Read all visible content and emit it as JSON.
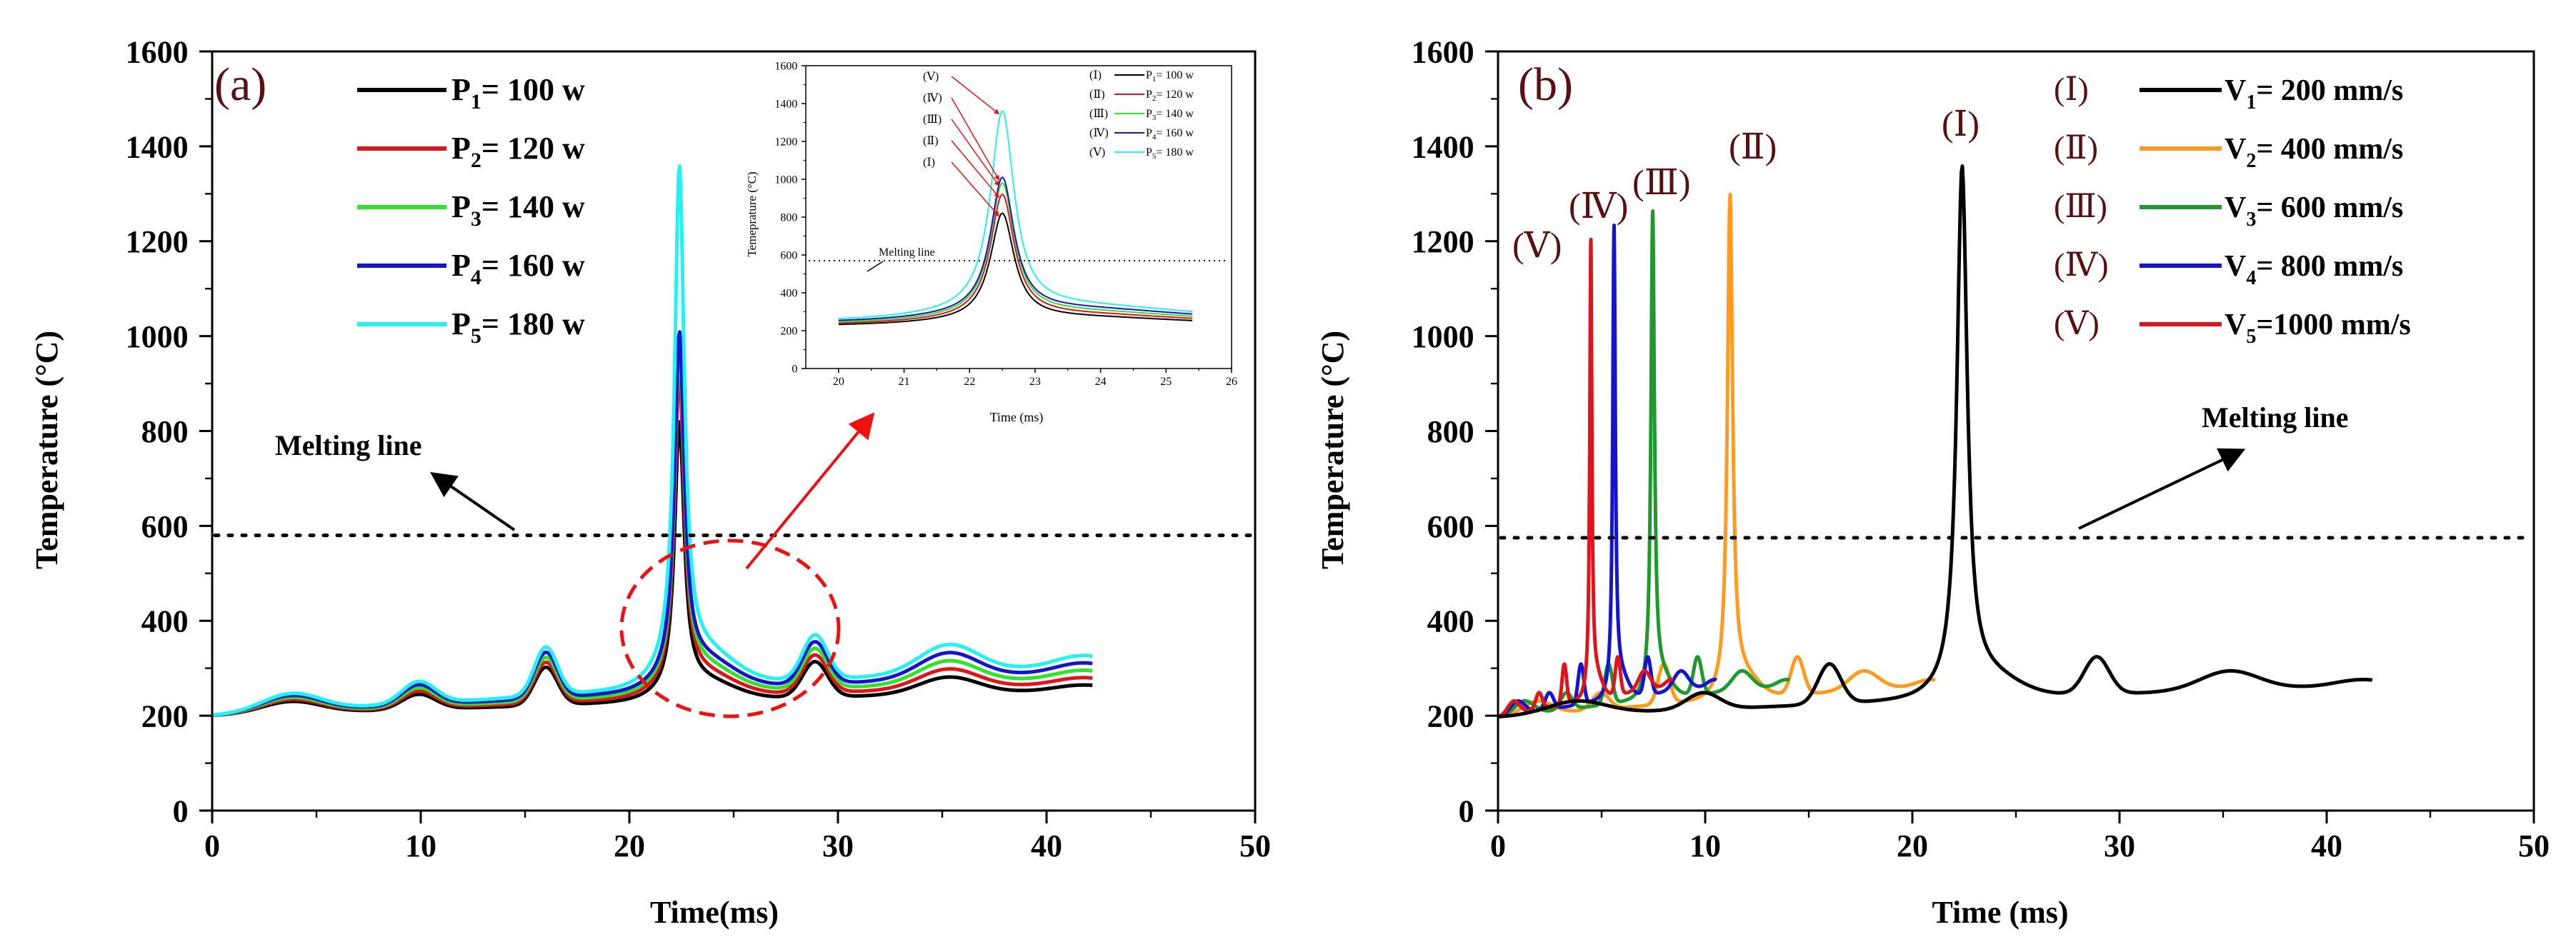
{
  "colors": {
    "black": "#000000",
    "red": "#e0141b",
    "green": "#2fe32b",
    "blue": "#1515d0",
    "cyan": "#22f2f2",
    "orange": "#ff9a1f",
    "dkgreen": "#1e9a2d",
    "annot_red": "#ee1111"
  },
  "chart_data": [
    {
      "id": "a",
      "type": "line",
      "panel_label": "(a)",
      "xlabel": "Time(ms)",
      "ylabel": "Temperature (°C)",
      "xlim": [
        0,
        50
      ],
      "ylim": [
        0,
        1600
      ],
      "xticks": [
        0,
        10,
        20,
        30,
        40,
        50
      ],
      "yticks": [
        0,
        200,
        400,
        600,
        800,
        1000,
        1200,
        1400,
        1600
      ],
      "melting_line": {
        "y": 580,
        "label": "Melting line"
      },
      "legend": [
        {
          "sub": "1",
          "value": "= 100 w"
        },
        {
          "sub": "2",
          "value": "= 120 w"
        },
        {
          "sub": "3",
          "value": "= 140 w"
        },
        {
          "sub": "4",
          "value": "= 160 w"
        },
        {
          "sub": "5",
          "value": "= 180 w"
        }
      ],
      "series": [
        {
          "name": "P1= 100 w",
          "color": "black",
          "offset": 0,
          "peak": 820
        },
        {
          "name": "P2= 120 w",
          "color": "red",
          "offset": 12,
          "peak": 920
        },
        {
          "name": "P3= 140 w",
          "color": "green",
          "offset": 24,
          "peak": 980
        },
        {
          "name": "P4= 160 w",
          "color": "blue",
          "offset": 36,
          "peak": 1010
        },
        {
          "name": "P5= 180 w",
          "color": "cyan",
          "offset": 48,
          "peak": 1360
        }
      ]
    },
    {
      "id": "a-inset",
      "type": "line",
      "xlabel": "Time (ms)",
      "ylabel": "Temeprature (°C)",
      "xlim": [
        19.5,
        26
      ],
      "ylim": [
        0,
        1600
      ],
      "xticks": [
        20,
        21,
        22,
        23,
        24,
        25,
        26
      ],
      "yticks": [
        0,
        200,
        400,
        600,
        800,
        1000,
        1200,
        1400,
        1600
      ],
      "melting_line": {
        "y": 570,
        "label": "Melting line"
      },
      "legend": [
        {
          "roman": "(Ⅰ)",
          "sub": "1",
          "value": "= 100 w"
        },
        {
          "roman": "(Ⅱ)",
          "sub": "2",
          "value": "= 120 w"
        },
        {
          "roman": "(Ⅲ)",
          "sub": "3",
          "value": "= 140 w"
        },
        {
          "roman": "(Ⅳ)",
          "sub": "4",
          "value": "= 160 w"
        },
        {
          "roman": "(Ⅴ)",
          "sub": "5",
          "value": "= 180 w"
        }
      ],
      "pointer_labels": [
        "(Ⅴ)",
        "(Ⅳ)",
        "(Ⅲ)",
        "(Ⅱ)",
        "(Ⅰ)"
      ]
    },
    {
      "id": "b",
      "type": "line",
      "panel_label": "(b)",
      "xlabel": "Time (ms)",
      "ylabel": "Temperature (°C)",
      "xlim": [
        0,
        50
      ],
      "ylim": [
        0,
        1600
      ],
      "xticks": [
        0,
        10,
        20,
        30,
        40,
        50
      ],
      "yticks": [
        0,
        200,
        400,
        600,
        800,
        1000,
        1200,
        1400,
        1600
      ],
      "melting_line": {
        "y": 575,
        "label": "Melting line"
      },
      "legend": [
        {
          "roman": "(Ⅰ)",
          "sub": "1",
          "value": "= 200  mm/s"
        },
        {
          "roman": "(Ⅱ)",
          "sub": "2",
          "value": "= 400  mm/s"
        },
        {
          "roman": "(Ⅲ)",
          "sub": "3",
          "value": "= 600  mm/s"
        },
        {
          "roman": "(Ⅳ)",
          "sub": "4",
          "value": "= 800  mm/s"
        },
        {
          "roman": "(Ⅴ)",
          "sub": "5",
          "value": "=1000  mm/s"
        }
      ],
      "series": [
        {
          "name": "V1= 200 mm/s",
          "label": "(Ⅰ)",
          "color": "black",
          "scale": 1.0,
          "peak": 1360
        },
        {
          "name": "V2= 400 mm/s",
          "label": "(Ⅱ)",
          "color": "orange",
          "scale": 0.5,
          "peak": 1300
        },
        {
          "name": "V3= 600 mm/s",
          "label": "(Ⅲ)",
          "color": "dkgreen",
          "scale": 0.3333,
          "peak": 1265
        },
        {
          "name": "V4= 800 mm/s",
          "label": "(Ⅳ)",
          "color": "blue",
          "scale": 0.25,
          "peak": 1235
        },
        {
          "name": "V5=1000 mm/s",
          "label": "(Ⅴ)",
          "color": "red",
          "scale": 0.2,
          "peak": 1205
        }
      ]
    }
  ]
}
